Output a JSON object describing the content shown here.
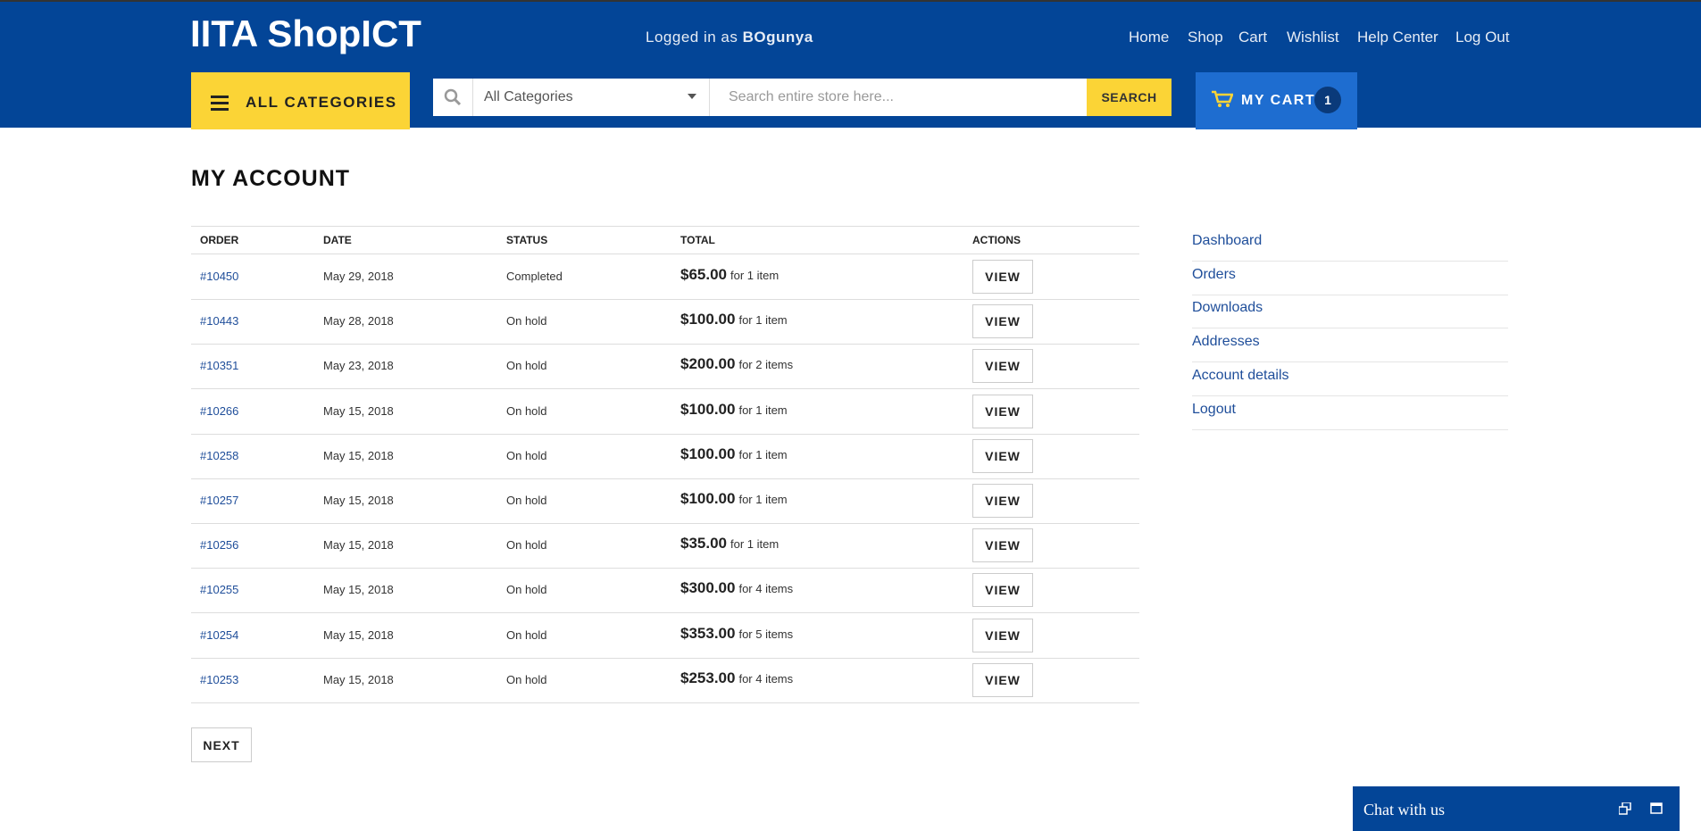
{
  "header": {
    "logo": "IITA ShopICT",
    "logged_in_prefix": "Logged in as",
    "username": "BOgunya",
    "nav": [
      "Home",
      "Shop",
      "Cart",
      "Wishlist",
      "Help Center",
      "Log Out"
    ],
    "all_categories": "ALL CATEGORIES",
    "category_select": "All Categories",
    "search_placeholder": "Search entire store here...",
    "search_button": "SEARCH",
    "cart_label": "MY CART",
    "cart_count": 1
  },
  "page_title": "MY ACCOUNT",
  "table": {
    "columns": [
      "ORDER",
      "DATE",
      "STATUS",
      "TOTAL",
      "ACTIONS"
    ],
    "action_label": "VIEW",
    "rows": [
      [
        "#10450",
        "May 29, 2018",
        "Completed",
        "$65.00",
        "for 1 item"
      ],
      [
        "#10443",
        "May 28, 2018",
        "On hold",
        "$100.00",
        "for 1 item"
      ],
      [
        "#10351",
        "May 23, 2018",
        "On hold",
        "$200.00",
        "for 2 items"
      ],
      [
        "#10266",
        "May 15, 2018",
        "On hold",
        "$100.00",
        "for 1 item"
      ],
      [
        "#10258",
        "May 15, 2018",
        "On hold",
        "$100.00",
        "for 1 item"
      ],
      [
        "#10257",
        "May 15, 2018",
        "On hold",
        "$100.00",
        "for 1 item"
      ],
      [
        "#10256",
        "May 15, 2018",
        "On hold",
        "$35.00",
        "for 1 item"
      ],
      [
        "#10255",
        "May 15, 2018",
        "On hold",
        "$300.00",
        "for 4 items"
      ],
      [
        "#10254",
        "May 15, 2018",
        "On hold",
        "$353.00",
        "for 5 items"
      ],
      [
        "#10253",
        "May 15, 2018",
        "On hold",
        "$253.00",
        "for 4 items"
      ]
    ]
  },
  "next_button": "NEXT",
  "sidebar": [
    "Dashboard",
    "Orders",
    "Downloads",
    "Addresses",
    "Account details",
    "Logout"
  ],
  "chat": {
    "label": "Chat with us"
  }
}
